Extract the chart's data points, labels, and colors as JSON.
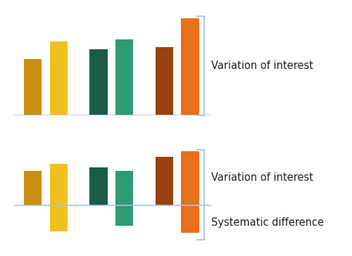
{
  "upper_bars": {
    "values": [
      0.58,
      0.76,
      0.68,
      0.78,
      0.7,
      1.0
    ],
    "colors": [
      "#C89010",
      "#F0C020",
      "#1A5C48",
      "#2E9B70",
      "#9B4010",
      "#E87018"
    ],
    "x_positions": [
      0.5,
      1.05,
      1.9,
      2.45,
      3.3,
      3.85
    ]
  },
  "lower_bars": {
    "above_values": [
      0.4,
      0.48,
      0.44,
      0.4,
      0.56,
      0.63
    ],
    "below_values": [
      0.0,
      0.3,
      0.0,
      0.24,
      0.0,
      0.32
    ],
    "colors": [
      "#C89010",
      "#F0C020",
      "#1A5C48",
      "#2E9B70",
      "#9B4010",
      "#E87018"
    ],
    "x_positions": [
      0.5,
      1.05,
      1.9,
      2.45,
      3.3,
      3.85
    ]
  },
  "bracket_color": "#A8C8DC",
  "text_color": "#222222",
  "bg_color": "#FFFFFF",
  "upper_label": "Variation of interest",
  "lower_label_top": "Variation of interest",
  "lower_label_bottom": "Systematic difference",
  "bar_width": 0.38,
  "font_size": 10.5
}
